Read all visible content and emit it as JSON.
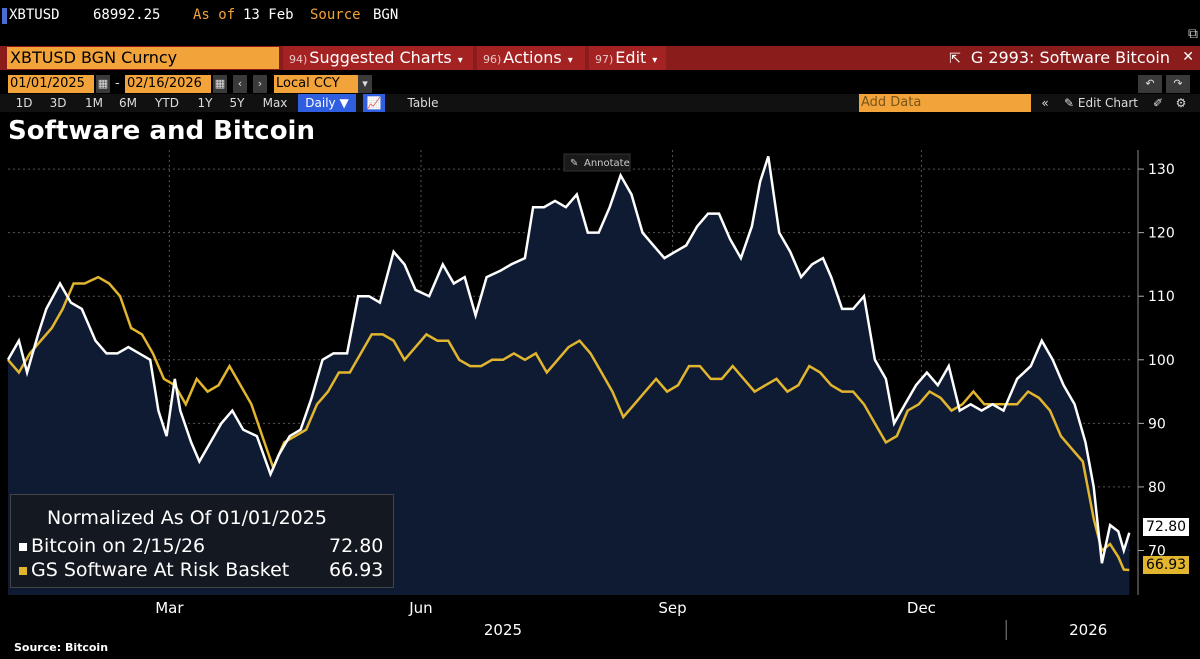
{
  "ticker": {
    "symbol": "XBTUSD",
    "price": "68992.25",
    "as_of_label": "As of",
    "as_of_value": "13 Feb",
    "source_label": "Source",
    "source_value": "BGN"
  },
  "command_bar": {
    "security": "XBTUSD BGN Curncy",
    "menus": [
      {
        "num": "94)",
        "label": "Suggested Charts"
      },
      {
        "num": "96)",
        "label": "Actions"
      },
      {
        "num": "97)",
        "label": "Edit"
      }
    ],
    "chart_id": "G 2993: Software Bitcoin"
  },
  "date_row": {
    "start": "01/01/2025",
    "dash": "-",
    "end": "02/16/2026",
    "currency": "Local CCY"
  },
  "range_row": {
    "ranges": [
      "1D",
      "3D",
      "1M",
      "6M",
      "YTD",
      "1Y",
      "5Y",
      "Max"
    ],
    "frequency": "Daily",
    "table_label": "Table",
    "add_data_placeholder": "Add Data",
    "edit_chart_label": "Edit Chart"
  },
  "annotate_label": "Annotate",
  "colors": {
    "bitcoin": "#ffffff",
    "software": "#e2b52f",
    "area": "#0e1b33",
    "accent": "#f2a33a",
    "bar": "#8b1c1c"
  },
  "chart_data": {
    "type": "line",
    "title": "Software and Bitcoin",
    "subtitle": "Normalized As Of 01/01/2025",
    "ylim": [
      63,
      133
    ],
    "yticks": [
      70,
      80,
      90,
      100,
      110,
      120,
      130
    ],
    "xlim": [
      "2025-01-01",
      "2026-02-16"
    ],
    "x_tick_labels": [
      {
        "date": "2025-03-01",
        "label": "Mar"
      },
      {
        "date": "2025-06-01",
        "label": "Jun"
      },
      {
        "date": "2025-09-01",
        "label": "Sep"
      },
      {
        "date": "2025-12-01",
        "label": "Dec"
      }
    ],
    "year_labels": [
      {
        "date": "2025-07-01",
        "label": "2025"
      },
      {
        "date": "2026-01-31",
        "label": "2026"
      }
    ],
    "series": [
      {
        "name": "Bitcoin on 2/15/26",
        "last_value": "72.80",
        "fill_area": true,
        "points": [
          [
            "2025-01-01",
            100
          ],
          [
            "2025-01-05",
            103
          ],
          [
            "2025-01-08",
            98
          ],
          [
            "2025-01-12",
            104
          ],
          [
            "2025-01-15",
            108
          ],
          [
            "2025-01-20",
            112
          ],
          [
            "2025-01-24",
            109
          ],
          [
            "2025-01-28",
            108
          ],
          [
            "2025-02-02",
            103
          ],
          [
            "2025-02-06",
            101
          ],
          [
            "2025-02-10",
            101
          ],
          [
            "2025-02-14",
            102
          ],
          [
            "2025-02-18",
            101
          ],
          [
            "2025-02-22",
            100
          ],
          [
            "2025-02-25",
            92
          ],
          [
            "2025-02-28",
            88
          ],
          [
            "2025-03-03",
            97
          ],
          [
            "2025-03-05",
            92
          ],
          [
            "2025-03-09",
            87
          ],
          [
            "2025-03-12",
            84
          ],
          [
            "2025-03-16",
            87
          ],
          [
            "2025-03-20",
            90
          ],
          [
            "2025-03-24",
            92
          ],
          [
            "2025-03-28",
            89
          ],
          [
            "2025-04-02",
            88
          ],
          [
            "2025-04-07",
            82
          ],
          [
            "2025-04-10",
            85
          ],
          [
            "2025-04-14",
            88
          ],
          [
            "2025-04-18",
            89
          ],
          [
            "2025-04-22",
            94
          ],
          [
            "2025-04-26",
            100
          ],
          [
            "2025-04-30",
            101
          ],
          [
            "2025-05-05",
            101
          ],
          [
            "2025-05-09",
            110
          ],
          [
            "2025-05-13",
            110
          ],
          [
            "2025-05-17",
            109
          ],
          [
            "2025-05-22",
            117
          ],
          [
            "2025-05-26",
            115
          ],
          [
            "2025-05-30",
            111
          ],
          [
            "2025-06-04",
            110
          ],
          [
            "2025-06-09",
            115
          ],
          [
            "2025-06-13",
            112
          ],
          [
            "2025-06-17",
            113
          ],
          [
            "2025-06-21",
            107
          ],
          [
            "2025-06-25",
            113
          ],
          [
            "2025-06-30",
            114
          ],
          [
            "2025-07-04",
            115
          ],
          [
            "2025-07-09",
            116
          ],
          [
            "2025-07-12",
            124
          ],
          [
            "2025-07-16",
            124
          ],
          [
            "2025-07-20",
            125
          ],
          [
            "2025-07-24",
            124
          ],
          [
            "2025-07-28",
            126
          ],
          [
            "2025-08-01",
            120
          ],
          [
            "2025-08-05",
            120
          ],
          [
            "2025-08-09",
            124
          ],
          [
            "2025-08-13",
            129
          ],
          [
            "2025-08-17",
            126
          ],
          [
            "2025-08-21",
            120
          ],
          [
            "2025-08-25",
            118
          ],
          [
            "2025-08-29",
            116
          ],
          [
            "2025-09-02",
            117
          ],
          [
            "2025-09-06",
            118
          ],
          [
            "2025-09-10",
            121
          ],
          [
            "2025-09-14",
            123
          ],
          [
            "2025-09-18",
            123
          ],
          [
            "2025-09-22",
            119
          ],
          [
            "2025-09-26",
            116
          ],
          [
            "2025-09-30",
            121
          ],
          [
            "2025-10-03",
            128
          ],
          [
            "2025-10-06",
            132
          ],
          [
            "2025-10-10",
            120
          ],
          [
            "2025-10-14",
            117
          ],
          [
            "2025-10-18",
            113
          ],
          [
            "2025-10-22",
            115
          ],
          [
            "2025-10-26",
            116
          ],
          [
            "2025-10-29",
            113
          ],
          [
            "2025-11-02",
            108
          ],
          [
            "2025-11-06",
            108
          ],
          [
            "2025-11-10",
            110
          ],
          [
            "2025-11-14",
            100
          ],
          [
            "2025-11-18",
            97
          ],
          [
            "2025-11-21",
            90
          ],
          [
            "2025-11-25",
            93
          ],
          [
            "2025-11-29",
            96
          ],
          [
            "2025-12-03",
            98
          ],
          [
            "2025-12-07",
            96
          ],
          [
            "2025-12-11",
            99
          ],
          [
            "2025-12-15",
            92
          ],
          [
            "2025-12-19",
            93
          ],
          [
            "2025-12-23",
            92
          ],
          [
            "2025-12-27",
            93
          ],
          [
            "2025-12-31",
            92
          ],
          [
            "2026-01-05",
            97
          ],
          [
            "2026-01-10",
            99
          ],
          [
            "2026-01-14",
            103
          ],
          [
            "2026-01-18",
            100
          ],
          [
            "2026-01-22",
            96
          ],
          [
            "2026-01-26",
            93
          ],
          [
            "2026-01-30",
            87
          ],
          [
            "2026-02-02",
            80
          ],
          [
            "2026-02-05",
            68
          ],
          [
            "2026-02-08",
            74
          ],
          [
            "2026-02-11",
            73
          ],
          [
            "2026-02-13",
            70
          ],
          [
            "2026-02-15",
            72.8
          ]
        ]
      },
      {
        "name": "GS Software At Risk Basket",
        "last_value": "66.93",
        "fill_area": false,
        "points": [
          [
            "2025-01-01",
            100
          ],
          [
            "2025-01-05",
            98
          ],
          [
            "2025-01-09",
            101
          ],
          [
            "2025-01-13",
            103
          ],
          [
            "2025-01-17",
            105
          ],
          [
            "2025-01-21",
            108
          ],
          [
            "2025-01-25",
            112
          ],
          [
            "2025-01-29",
            112
          ],
          [
            "2025-02-03",
            113
          ],
          [
            "2025-02-07",
            112
          ],
          [
            "2025-02-11",
            110
          ],
          [
            "2025-02-15",
            105
          ],
          [
            "2025-02-19",
            104
          ],
          [
            "2025-02-23",
            101
          ],
          [
            "2025-02-27",
            97
          ],
          [
            "2025-03-03",
            96
          ],
          [
            "2025-03-07",
            93
          ],
          [
            "2025-03-11",
            97
          ],
          [
            "2025-03-15",
            95
          ],
          [
            "2025-03-19",
            96
          ],
          [
            "2025-03-23",
            99
          ],
          [
            "2025-03-27",
            96
          ],
          [
            "2025-03-31",
            93
          ],
          [
            "2025-04-04",
            88
          ],
          [
            "2025-04-08",
            83
          ],
          [
            "2025-04-12",
            87
          ],
          [
            "2025-04-16",
            88
          ],
          [
            "2025-04-20",
            89
          ],
          [
            "2025-04-24",
            93
          ],
          [
            "2025-04-28",
            95
          ],
          [
            "2025-05-02",
            98
          ],
          [
            "2025-05-06",
            98
          ],
          [
            "2025-05-10",
            101
          ],
          [
            "2025-05-14",
            104
          ],
          [
            "2025-05-18",
            104
          ],
          [
            "2025-05-22",
            103
          ],
          [
            "2025-05-26",
            100
          ],
          [
            "2025-05-30",
            102
          ],
          [
            "2025-06-03",
            104
          ],
          [
            "2025-06-07",
            103
          ],
          [
            "2025-06-11",
            103
          ],
          [
            "2025-06-15",
            100
          ],
          [
            "2025-06-19",
            99
          ],
          [
            "2025-06-23",
            99
          ],
          [
            "2025-06-27",
            100
          ],
          [
            "2025-07-01",
            100
          ],
          [
            "2025-07-05",
            101
          ],
          [
            "2025-07-09",
            100
          ],
          [
            "2025-07-13",
            101
          ],
          [
            "2025-07-17",
            98
          ],
          [
            "2025-07-21",
            100
          ],
          [
            "2025-07-25",
            102
          ],
          [
            "2025-07-29",
            103
          ],
          [
            "2025-08-02",
            101
          ],
          [
            "2025-08-06",
            98
          ],
          [
            "2025-08-10",
            95
          ],
          [
            "2025-08-14",
            91
          ],
          [
            "2025-08-18",
            93
          ],
          [
            "2025-08-22",
            95
          ],
          [
            "2025-08-26",
            97
          ],
          [
            "2025-08-30",
            95
          ],
          [
            "2025-09-03",
            96
          ],
          [
            "2025-09-07",
            99
          ],
          [
            "2025-09-11",
            99
          ],
          [
            "2025-09-15",
            97
          ],
          [
            "2025-09-19",
            97
          ],
          [
            "2025-09-23",
            99
          ],
          [
            "2025-09-27",
            97
          ],
          [
            "2025-10-01",
            95
          ],
          [
            "2025-10-05",
            96
          ],
          [
            "2025-10-09",
            97
          ],
          [
            "2025-10-13",
            95
          ],
          [
            "2025-10-17",
            96
          ],
          [
            "2025-10-21",
            99
          ],
          [
            "2025-10-25",
            98
          ],
          [
            "2025-10-29",
            96
          ],
          [
            "2025-11-02",
            95
          ],
          [
            "2025-11-06",
            95
          ],
          [
            "2025-11-10",
            93
          ],
          [
            "2025-11-14",
            90
          ],
          [
            "2025-11-18",
            87
          ],
          [
            "2025-11-22",
            88
          ],
          [
            "2025-11-26",
            92
          ],
          [
            "2025-11-30",
            93
          ],
          [
            "2025-12-04",
            95
          ],
          [
            "2025-12-08",
            94
          ],
          [
            "2025-12-12",
            92
          ],
          [
            "2025-12-16",
            93
          ],
          [
            "2025-12-20",
            95
          ],
          [
            "2025-12-24",
            93
          ],
          [
            "2025-12-28",
            93
          ],
          [
            "2026-01-01",
            93
          ],
          [
            "2026-01-05",
            93
          ],
          [
            "2026-01-09",
            95
          ],
          [
            "2026-01-13",
            94
          ],
          [
            "2026-01-17",
            92
          ],
          [
            "2026-01-21",
            88
          ],
          [
            "2026-01-25",
            86
          ],
          [
            "2026-01-29",
            84
          ],
          [
            "2026-02-02",
            75
          ],
          [
            "2026-02-05",
            70
          ],
          [
            "2026-02-08",
            71
          ],
          [
            "2026-02-11",
            69
          ],
          [
            "2026-02-13",
            67
          ],
          [
            "2026-02-15",
            66.93
          ]
        ]
      }
    ]
  },
  "legend": {
    "heading": "Normalized As Of 01/01/2025",
    "bitcoin_label": "Bitcoin on 2/15/26",
    "bitcoin_value": "72.80",
    "software_label": "GS Software At Risk Basket",
    "software_value": "66.93"
  },
  "source_text": "Source: Bitcoin"
}
